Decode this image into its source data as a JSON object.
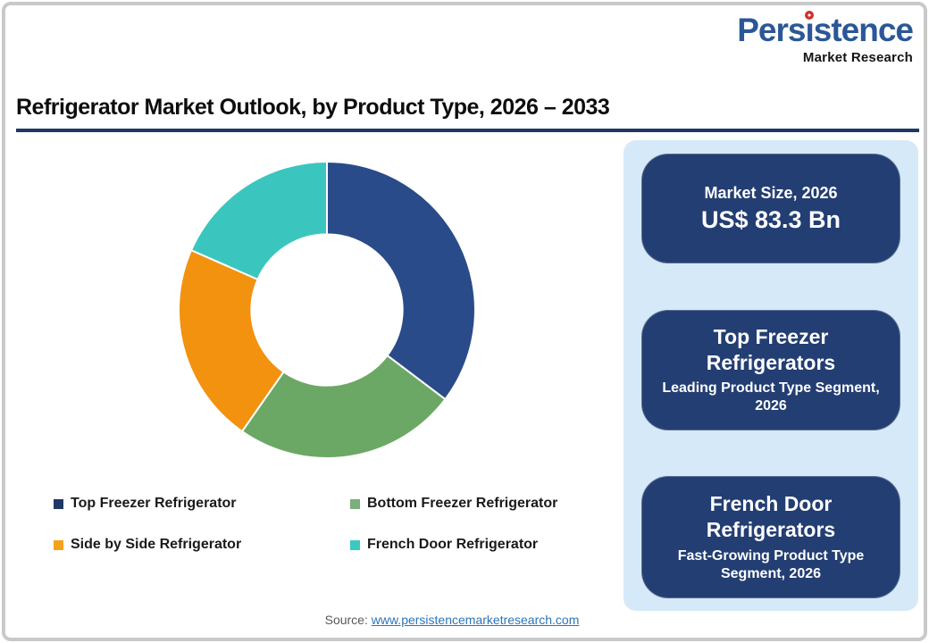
{
  "logo": {
    "name": "Persistence",
    "tagline": "Market Research",
    "wordmark_color": "#2b5797",
    "dot_color": "#d0312d"
  },
  "title": "Refrigerator Market Outlook, by Product Type, 2026 – 2033",
  "title_rule_color": "#1f3864",
  "chart_data": {
    "type": "pie",
    "subtype": "donut",
    "title": "Refrigerator Market Outlook, by Product Type, 2026 – 2033",
    "categories": [
      "Top Freezer Refrigerator",
      "Bottom Freezer Refrigerator",
      "Side by Side Refrigerator",
      "French Door Refrigerator"
    ],
    "values": [
      35.3,
      24.4,
      21.9,
      18.4
    ],
    "unit": "percent (estimated from arc angles; no data labels shown)",
    "colors": [
      "#2a4b89",
      "#6ca865",
      "#f2920f",
      "#3ac6be"
    ],
    "start_angle_deg": 0,
    "direction": "clockwise",
    "inner_radius_ratio": 0.51,
    "separator_color": "#ffffff",
    "legend_position": "bottom"
  },
  "legend": {
    "items": [
      {
        "label": "Top Freezer Refrigerator",
        "color": "#1f3864"
      },
      {
        "label": "Bottom Freezer Refrigerator",
        "color": "#7cad7c"
      },
      {
        "label": "Side by Side Refrigerator",
        "color": "#f5a21b"
      },
      {
        "label": "French Door Refrigerator",
        "color": "#3bc8c3"
      }
    ]
  },
  "panel": {
    "background": "#d6e9f8",
    "box_color": "#233e72",
    "boxes": [
      {
        "title": "Market Size, 2026",
        "value": "US$ 83.3 Bn"
      },
      {
        "title": "Top Freezer Refrigerators",
        "subtitle": "Leading Product Type Segment, 2026"
      },
      {
        "title": "French Door Refrigerators",
        "subtitle": "Fast-Growing Product Type Segment, 2026"
      }
    ]
  },
  "source": {
    "label": "Source:",
    "link_text": "www.persistencemarketresearch.com"
  }
}
